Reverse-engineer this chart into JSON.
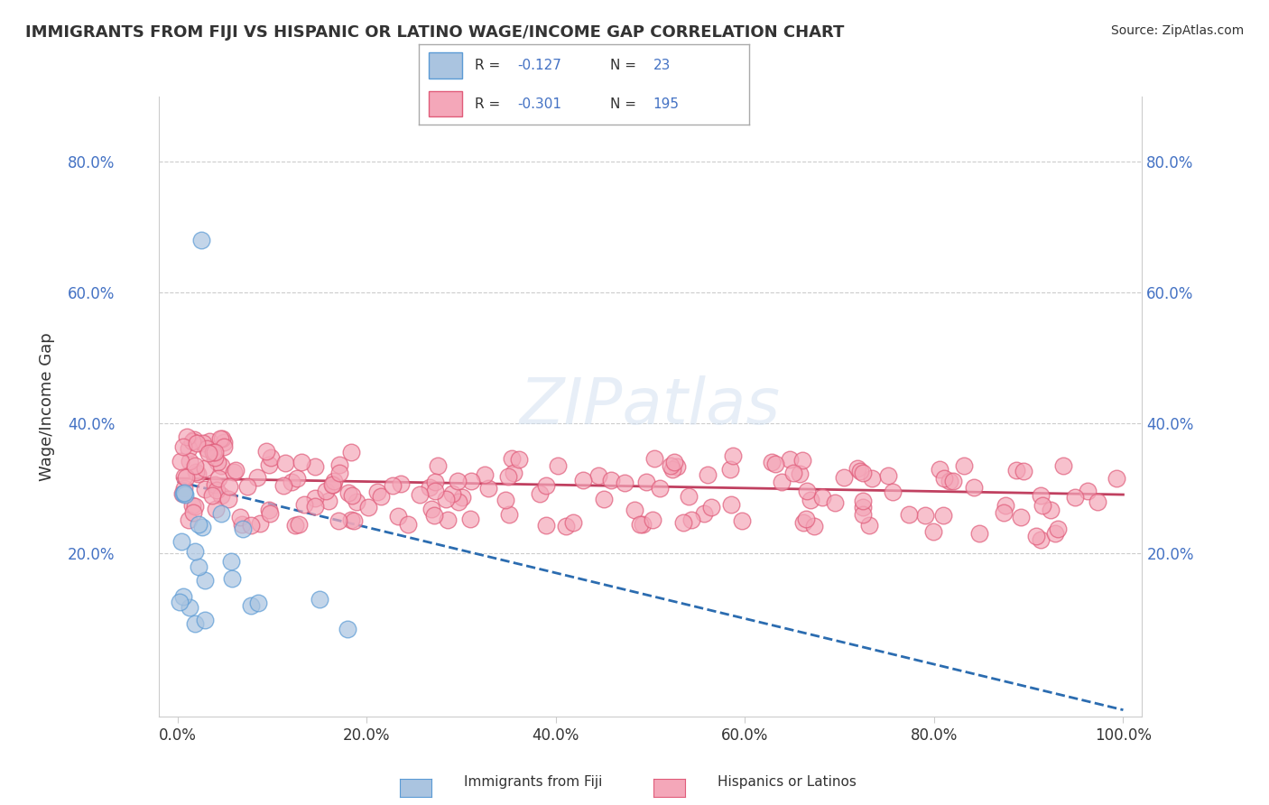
{
  "title": "IMMIGRANTS FROM FIJI VS HISPANIC OR LATINO WAGE/INCOME GAP CORRELATION CHART",
  "source": "Source: ZipAtlas.com",
  "ylabel": "Wage/Income Gap",
  "fiji_color": "#aac4e0",
  "fiji_edge_color": "#5b9bd5",
  "hispanic_color": "#f4a7b9",
  "hispanic_edge_color": "#e05c7a",
  "fiji_line_color": "#2b6cb0",
  "hispanic_line_color": "#c04060",
  "background_color": "#ffffff",
  "grid_color": "#cccccc",
  "legend_R_fiji": "-0.127",
  "legend_N_fiji": "23",
  "legend_R_hispanic": "-0.301",
  "legend_N_hispanic": "195",
  "fiji_slope": -0.35,
  "fiji_intercept": 31.0,
  "hisp_slope": -0.025,
  "hisp_intercept": 31.5,
  "yticks": [
    20,
    40,
    60,
    80
  ],
  "xticks": [
    0,
    20,
    40,
    60,
    80,
    100
  ],
  "xlim": [
    -2,
    102
  ],
  "ylim": [
    -5,
    90
  ]
}
